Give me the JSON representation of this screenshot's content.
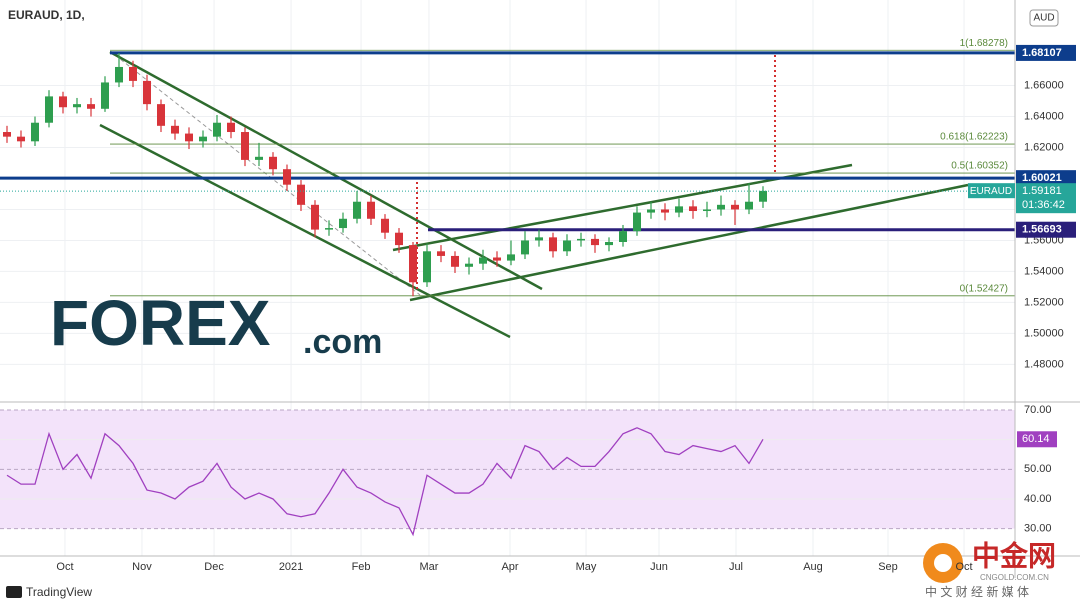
{
  "chart_data": {
    "type": "candlestick",
    "title": "EURAUD, 1D,",
    "currency": "AUD",
    "series": [
      {
        "name": "EURAUD",
        "up_color": "#2e9e4f",
        "down_color": "#d8343a",
        "values": [
          [
            1.63,
            1.634,
            1.623,
            1.627
          ],
          [
            1.627,
            1.631,
            1.62,
            1.624
          ],
          [
            1.624,
            1.64,
            1.621,
            1.636
          ],
          [
            1.636,
            1.657,
            1.633,
            1.653
          ],
          [
            1.653,
            1.656,
            1.642,
            1.646
          ],
          [
            1.646,
            1.652,
            1.642,
            1.648
          ],
          [
            1.648,
            1.652,
            1.64,
            1.645
          ],
          [
            1.645,
            1.666,
            1.643,
            1.662
          ],
          [
            1.662,
            1.681,
            1.659,
            1.672
          ],
          [
            1.672,
            1.676,
            1.659,
            1.663
          ],
          [
            1.663,
            1.667,
            1.644,
            1.648
          ],
          [
            1.648,
            1.651,
            1.63,
            1.634
          ],
          [
            1.634,
            1.638,
            1.625,
            1.629
          ],
          [
            1.629,
            1.633,
            1.619,
            1.624
          ],
          [
            1.624,
            1.631,
            1.62,
            1.627
          ],
          [
            1.627,
            1.641,
            1.624,
            1.636
          ],
          [
            1.636,
            1.64,
            1.626,
            1.63
          ],
          [
            1.63,
            1.633,
            1.608,
            1.612
          ],
          [
            1.612,
            1.623,
            1.608,
            1.614
          ],
          [
            1.614,
            1.617,
            1.602,
            1.606
          ],
          [
            1.606,
            1.609,
            1.592,
            1.596
          ],
          [
            1.596,
            1.599,
            1.579,
            1.583
          ],
          [
            1.583,
            1.586,
            1.562,
            1.567
          ],
          [
            1.567,
            1.573,
            1.563,
            1.568
          ],
          [
            1.568,
            1.578,
            1.565,
            1.574
          ],
          [
            1.574,
            1.592,
            1.571,
            1.585
          ],
          [
            1.585,
            1.589,
            1.57,
            1.574
          ],
          [
            1.574,
            1.577,
            1.561,
            1.565
          ],
          [
            1.565,
            1.568,
            1.552,
            1.557
          ],
          [
            1.557,
            1.559,
            1.524,
            1.533
          ],
          [
            1.533,
            1.558,
            1.53,
            1.553
          ],
          [
            1.553,
            1.557,
            1.546,
            1.55
          ],
          [
            1.55,
            1.553,
            1.539,
            1.543
          ],
          [
            1.543,
            1.549,
            1.538,
            1.545
          ],
          [
            1.545,
            1.554,
            1.541,
            1.549
          ],
          [
            1.549,
            1.553,
            1.543,
            1.547
          ],
          [
            1.547,
            1.56,
            1.544,
            1.551
          ],
          [
            1.551,
            1.566,
            1.548,
            1.56
          ],
          [
            1.56,
            1.567,
            1.556,
            1.562
          ],
          [
            1.562,
            1.565,
            1.549,
            1.553
          ],
          [
            1.553,
            1.564,
            1.55,
            1.56
          ],
          [
            1.56,
            1.565,
            1.556,
            1.561
          ],
          [
            1.561,
            1.564,
            1.552,
            1.557
          ],
          [
            1.557,
            1.562,
            1.553,
            1.559
          ],
          [
            1.559,
            1.57,
            1.556,
            1.566
          ],
          [
            1.566,
            1.582,
            1.563,
            1.578
          ],
          [
            1.578,
            1.585,
            1.574,
            1.58
          ],
          [
            1.58,
            1.584,
            1.573,
            1.578
          ],
          [
            1.578,
            1.587,
            1.575,
            1.582
          ],
          [
            1.582,
            1.586,
            1.574,
            1.579
          ],
          [
            1.579,
            1.585,
            1.575,
            1.58
          ],
          [
            1.58,
            1.589,
            1.576,
            1.583
          ],
          [
            1.583,
            1.586,
            1.57,
            1.58
          ],
          [
            1.58,
            1.597,
            1.577,
            1.585
          ],
          [
            1.585,
            1.595,
            1.581,
            1.592
          ]
        ]
      }
    ],
    "xlim": [
      -0.5,
      72
    ],
    "xticks": [
      {
        "value": 4.14,
        "label": "Oct"
      },
      {
        "value": 9.64,
        "label": "Nov"
      },
      {
        "value": 14.79,
        "label": "Dec"
      },
      {
        "value": 20.29,
        "label": "2021"
      },
      {
        "value": 25.29,
        "label": "Feb"
      },
      {
        "value": 30.14,
        "label": "Mar"
      },
      {
        "value": 35.93,
        "label": "Apr"
      },
      {
        "value": 41.36,
        "label": "May"
      },
      {
        "value": 46.57,
        "label": "Jun"
      },
      {
        "value": 52.07,
        "label": "Jul"
      },
      {
        "value": 57.57,
        "label": "Aug"
      },
      {
        "value": 62.93,
        "label": "Sep"
      },
      {
        "value": 68.36,
        "label": "Oct"
      }
    ],
    "ylim": [
      1.457,
      1.712
    ],
    "yticks": [
      {
        "value": 1.48,
        "label": "1.48000"
      },
      {
        "value": 1.5,
        "label": "1.50000"
      },
      {
        "value": 1.52,
        "label": "1.52000"
      },
      {
        "value": 1.54,
        "label": "1.54000"
      },
      {
        "value": 1.56,
        "label": "1.56000"
      },
      {
        "value": 1.58,
        "label": "1.58000"
      },
      {
        "value": 1.6,
        "label": "1.60000"
      },
      {
        "value": 1.62,
        "label": "1.62000"
      },
      {
        "value": 1.64,
        "label": "1.64000"
      },
      {
        "value": 1.66,
        "label": "1.66000"
      }
    ],
    "grid": true,
    "last_price": 1.59181,
    "countdown": "01:36:42",
    "last_color": "#26a69a",
    "levels": [
      {
        "price": 1.68107,
        "color": "#0d3d8c"
      },
      {
        "price": 1.60021,
        "color": "#0d3d8c"
      },
      {
        "price": 1.56693,
        "color": "#2a1f7a"
      }
    ],
    "fib": [
      {
        "label": "1(1.68278)",
        "value": 1.68278
      },
      {
        "label": "0.618(1.62223)",
        "value": 1.62223
      },
      {
        "label": "0.5(1.60352)",
        "value": 1.60352
      },
      {
        "label": "0(1.52427)",
        "value": 1.52427
      }
    ],
    "fib_color": "#5b8a3c",
    "rsi": {
      "color": "#a040c0",
      "band_color": "#f3e3fa",
      "ylim": [
        21.1,
        71.7
      ],
      "yticks": [
        {
          "value": 30,
          "label": "30.00"
        },
        {
          "value": 40,
          "label": "40.00"
        },
        {
          "value": 50,
          "label": "50.00"
        },
        {
          "value": 60,
          "label": "60.00"
        },
        {
          "value": 70,
          "label": "70.00"
        }
      ],
      "last": 60.14,
      "values": [
        48,
        45,
        45,
        62,
        50,
        55,
        47,
        62,
        58,
        52,
        43,
        42,
        40,
        44,
        46,
        52,
        44,
        40,
        42,
        40,
        35,
        34,
        35,
        42,
        50,
        44,
        42,
        39,
        37,
        28,
        48,
        45,
        42,
        42,
        45,
        52,
        47,
        58,
        56,
        50,
        54,
        51,
        51,
        56,
        62,
        64,
        62,
        56,
        55,
        58,
        57,
        56,
        58,
        52,
        60.14
      ]
    }
  },
  "watermark": {
    "brand": "FOREX",
    "suffix": ".com"
  },
  "footer": {
    "platform": "TradingView"
  },
  "cngold": {
    "name": "中金网",
    "site": "CNGOLD.COM.CN",
    "tagline": "中 文 财 经 新 媒 体"
  }
}
